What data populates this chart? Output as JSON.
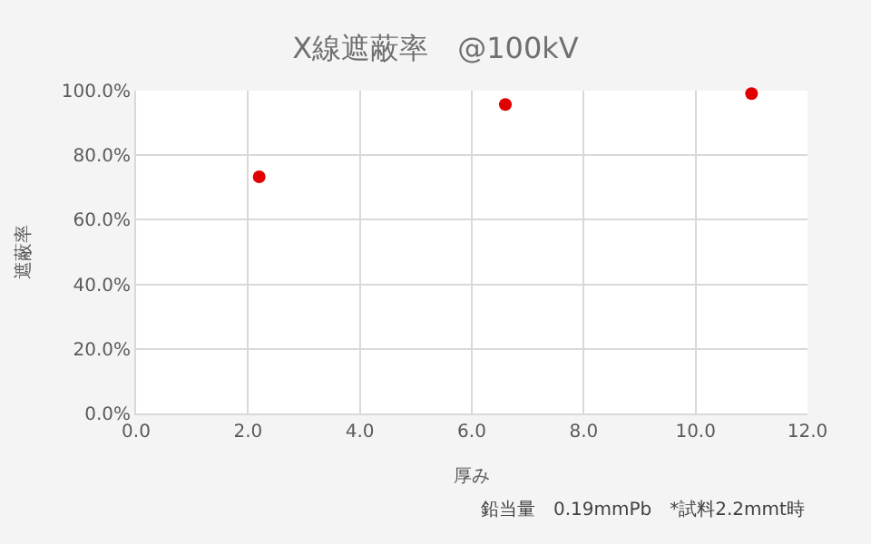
{
  "chart_data": {
    "type": "scatter",
    "title": "X線遮蔽率　@100kV",
    "xlabel": "厚み",
    "ylabel": "遮蔽率",
    "x": [
      2.2,
      6.6,
      11.0
    ],
    "series": [
      {
        "color": "#e00000",
        "values": [
          73.3,
          95.7,
          99.1
        ]
      }
    ],
    "xlim": [
      0,
      12
    ],
    "xticks": [
      {
        "value": 0,
        "label": "0.0"
      },
      {
        "value": 2,
        "label": "2.0"
      },
      {
        "value": 4,
        "label": "4.0"
      },
      {
        "value": 6,
        "label": "6.0"
      },
      {
        "value": 8,
        "label": "8.0"
      },
      {
        "value": 10,
        "label": "10.0"
      },
      {
        "value": 12,
        "label": "12.0"
      }
    ],
    "ylim": [
      0,
      100
    ],
    "yticks": [
      {
        "value": 0,
        "label": "0.0%"
      },
      {
        "value": 20,
        "label": "20.0%"
      },
      {
        "value": 40,
        "label": "40.0%"
      },
      {
        "value": 60,
        "label": "60.0%"
      },
      {
        "value": 80,
        "label": "80.0%"
      },
      {
        "value": 100,
        "label": "100.0%"
      }
    ],
    "grid": true,
    "marker": "circle",
    "annotations": [
      "鉛当量　0.19mmPb　*試料2.2mmt時"
    ]
  }
}
